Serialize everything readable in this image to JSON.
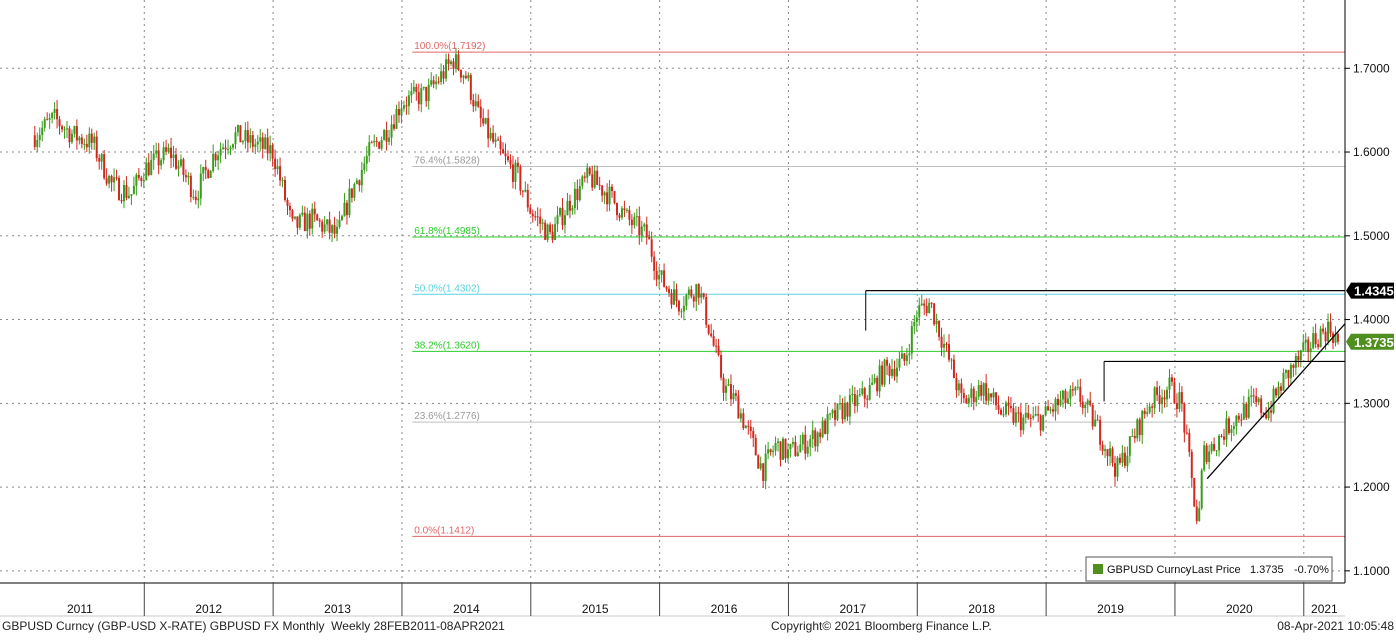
{
  "chart_data": {
    "type": "line",
    "style": "candlestick",
    "title": "",
    "xlabel": "",
    "ylabel": "",
    "xlim": [
      2010.88,
      2021.32
    ],
    "ylim": [
      1.0855,
      1.7815
    ],
    "grid": true,
    "x_tick_labels": [
      "2011",
      "2012",
      "2013",
      "2014",
      "2015",
      "2016",
      "2017",
      "2018",
      "2019",
      "2020",
      "2021"
    ],
    "y_ticks": [
      1.7,
      1.6,
      1.5,
      1.4,
      1.3,
      1.2,
      1.1
    ],
    "y_tick_labels": [
      "1.7000",
      "1.6000",
      "1.5000",
      "1.4000",
      "1.3000",
      "1.2000",
      "1.1000"
    ],
    "up_color": "#3a9b1f",
    "down_color": "#d0281e",
    "series": [
      {
        "name": "GBPUSD Curncy",
        "x": [
          2011.15,
          2011.3,
          2011.45,
          2011.6,
          2011.75,
          2011.9,
          2012.0,
          2012.2,
          2012.4,
          2012.55,
          2012.7,
          2012.85,
          2013.0,
          2013.15,
          2013.3,
          2013.5,
          2013.6,
          2013.75,
          2013.9,
          2014.0,
          2014.2,
          2014.4,
          2014.5,
          2014.6,
          2014.75,
          2014.9,
          2015.0,
          2015.15,
          2015.3,
          2015.45,
          2015.6,
          2015.75,
          2015.9,
          2016.0,
          2016.15,
          2016.3,
          2016.45,
          2016.5,
          2016.6,
          2016.75,
          2016.8,
          2016.9,
          2017.0,
          2017.2,
          2017.4,
          2017.5,
          2017.6,
          2017.75,
          2017.9,
          2018.0,
          2018.1,
          2018.25,
          2018.35,
          2018.5,
          2018.65,
          2018.8,
          2018.95,
          2019.1,
          2019.25,
          2019.4,
          2019.55,
          2019.65,
          2019.8,
          2019.95,
          2020.05,
          2020.18,
          2020.22,
          2020.3,
          2020.45,
          2020.6,
          2020.72,
          2020.85,
          2021.0,
          2021.1,
          2021.2,
          2021.27
        ],
        "y": [
          1.62,
          1.64,
          1.62,
          1.61,
          1.56,
          1.55,
          1.58,
          1.6,
          1.55,
          1.6,
          1.62,
          1.61,
          1.6,
          1.51,
          1.52,
          1.5,
          1.55,
          1.6,
          1.63,
          1.66,
          1.67,
          1.71,
          1.69,
          1.64,
          1.6,
          1.57,
          1.53,
          1.5,
          1.54,
          1.57,
          1.55,
          1.52,
          1.5,
          1.45,
          1.42,
          1.44,
          1.35,
          1.32,
          1.3,
          1.24,
          1.22,
          1.25,
          1.24,
          1.26,
          1.29,
          1.3,
          1.31,
          1.34,
          1.35,
          1.41,
          1.42,
          1.35,
          1.3,
          1.32,
          1.29,
          1.28,
          1.28,
          1.3,
          1.31,
          1.27,
          1.22,
          1.25,
          1.3,
          1.32,
          1.3,
          1.15,
          1.24,
          1.25,
          1.28,
          1.3,
          1.29,
          1.33,
          1.36,
          1.38,
          1.39,
          1.3735
        ]
      }
    ],
    "fibonacci": {
      "start_x": 2014.08,
      "end_x": 2021.32,
      "levels": [
        {
          "label": "100.0%(1.7192)",
          "value": 1.7192,
          "color": "#e06666"
        },
        {
          "label": "76.4%(1.5828)",
          "value": 1.5828,
          "color": "#bfbfbf"
        },
        {
          "label": "61.8%(1.4985)",
          "value": 1.4985,
          "color": "#2ecc2e"
        },
        {
          "label": "50.0%(1.4302)",
          "value": 1.4302,
          "color": "#5bd3e0"
        },
        {
          "label": "38.2%(1.3620)",
          "value": 1.362,
          "color": "#2ecc2e"
        },
        {
          "label": "23.6%(1.2776)",
          "value": 1.2776,
          "color": "#bfbfbf"
        },
        {
          "label": "0.0%(1.1412)",
          "value": 1.1412,
          "color": "#e06666"
        }
      ]
    },
    "annotations": {
      "resistance_line": {
        "x1": 2017.6,
        "x2": 2021.32,
        "y": 1.4345
      },
      "support_line": {
        "x1": 2019.45,
        "x2": 2021.32,
        "y": 1.35
      },
      "trend_line": {
        "x1": 2020.25,
        "y1": 1.21,
        "x2": 2021.32,
        "y2": 1.395
      }
    },
    "price_labels": [
      {
        "text": "1.4345",
        "value": 1.4345,
        "bg": "#000000",
        "fg": "#ffffff"
      },
      {
        "text": "1.3735",
        "value": 1.3735,
        "bg": "#4e8f1e",
        "fg": "#ffffff"
      }
    ],
    "legend": {
      "placement": "bottom-right",
      "name": "GBPUSD Curncy",
      "field": "Last Price",
      "last": "1.3735",
      "change": "-0.70%",
      "swatch_color": "#4e8f1e"
    }
  },
  "footer": {
    "left": "GBPUSD Curncy (GBP-USD X-RATE) GBPUSD FX Monthly  Weekly 28FEB2011-08APR2021",
    "center": "Copyright© 2021 Bloomberg Finance L.P.",
    "right": "08-Apr-2021 10:05:48"
  }
}
